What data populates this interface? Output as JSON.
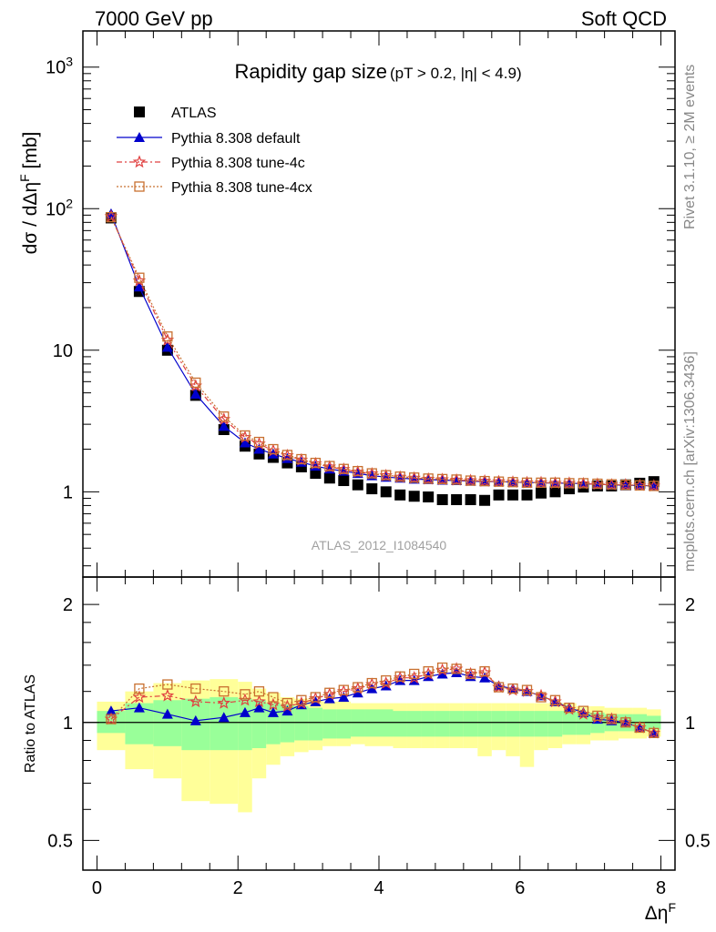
{
  "header": {
    "left": "7000 GeV pp",
    "right": "Soft QCD"
  },
  "side_labels": {
    "rivet": "Rivet 3.1.10, ≥ 2M events",
    "mcplots": "mcplots.cern.ch [arXiv:1306.3436]"
  },
  "colors": {
    "atlas": "#000000",
    "default": "#0000cc",
    "tune4c": "#e04040",
    "tune4cx": "#c87030",
    "band_green": "#99ff99",
    "band_yellow": "#ffff99"
  },
  "chart_data": [
    {
      "type": "scatter",
      "title": "Rapidity gap size",
      "title_suffix": "(pT > 0.2, |η| < 4.9)",
      "watermark": "ATLAS_2012_I1084540",
      "xlabel": "Δη^F",
      "ylabel": "dσ / dΔη^F [mb]",
      "yscale": "log",
      "xlim": [
        -0.2,
        8.2
      ],
      "ylim": [
        0.25,
        1800
      ],
      "x_ticks": [
        "0",
        "2",
        "4",
        "6",
        "8"
      ],
      "y_ticks": [
        "10^3",
        "10^2",
        "10",
        "1"
      ],
      "legend_position": "top-left",
      "x": [
        0.2,
        0.6,
        1.0,
        1.4,
        1.8,
        2.1,
        2.3,
        2.5,
        2.7,
        2.9,
        3.1,
        3.3,
        3.5,
        3.7,
        3.9,
        4.1,
        4.3,
        4.5,
        4.7,
        4.9,
        5.1,
        5.3,
        5.5,
        5.7,
        5.9,
        6.1,
        6.3,
        6.5,
        6.7,
        6.9,
        7.1,
        7.3,
        7.5,
        7.7,
        7.9
      ],
      "series": [
        {
          "name": "ATLAS",
          "marker": "square",
          "values": [
            86,
            26,
            10,
            4.8,
            2.75,
            2.1,
            1.85,
            1.75,
            1.6,
            1.5,
            1.35,
            1.25,
            1.2,
            1.12,
            1.05,
            1.0,
            0.95,
            0.93,
            0.92,
            0.88,
            0.88,
            0.88,
            0.87,
            0.95,
            0.95,
            0.95,
            0.98,
            1.0,
            1.05,
            1.08,
            1.1,
            1.1,
            1.12,
            1.15,
            1.18
          ]
        },
        {
          "name": "Pythia 8.308 default",
          "marker": "triangle",
          "values": [
            92,
            28,
            10.5,
            4.9,
            2.9,
            2.22,
            2.0,
            1.85,
            1.72,
            1.62,
            1.52,
            1.45,
            1.4,
            1.35,
            1.3,
            1.27,
            1.25,
            1.23,
            1.22,
            1.21,
            1.2,
            1.19,
            1.18,
            1.18,
            1.17,
            1.16,
            1.16,
            1.15,
            1.15,
            1.14,
            1.13,
            1.12,
            1.11,
            1.11,
            1.1
          ]
        },
        {
          "name": "Pythia 8.308 tune-4c",
          "marker": "star",
          "values": [
            88,
            31,
            11.8,
            5.6,
            3.25,
            2.42,
            2.18,
            1.95,
            1.8,
            1.68,
            1.58,
            1.5,
            1.44,
            1.38,
            1.34,
            1.3,
            1.27,
            1.25,
            1.23,
            1.22,
            1.21,
            1.2,
            1.19,
            1.18,
            1.17,
            1.16,
            1.16,
            1.15,
            1.15,
            1.14,
            1.13,
            1.12,
            1.12,
            1.11,
            1.1
          ]
        },
        {
          "name": "Pythia 8.308 tune-4cx",
          "marker": "open-square",
          "values": [
            87,
            32.5,
            12.5,
            5.9,
            3.4,
            2.5,
            2.25,
            2.0,
            1.82,
            1.7,
            1.6,
            1.52,
            1.45,
            1.4,
            1.35,
            1.31,
            1.28,
            1.26,
            1.24,
            1.23,
            1.22,
            1.2,
            1.19,
            1.18,
            1.17,
            1.16,
            1.16,
            1.16,
            1.15,
            1.15,
            1.14,
            1.13,
            1.12,
            1.11,
            1.1
          ]
        }
      ]
    },
    {
      "type": "scatter",
      "xlabel": "Δη^F",
      "ylabel": "Ratio to ATLAS",
      "yscale": "log",
      "xlim": [
        -0.2,
        8.2
      ],
      "ylim": [
        0.42,
        2.35
      ],
      "y_ticks": [
        "2",
        "1",
        "0.5"
      ],
      "x": [
        0.2,
        0.6,
        1.0,
        1.4,
        1.8,
        2.1,
        2.3,
        2.5,
        2.7,
        2.9,
        3.1,
        3.3,
        3.5,
        3.7,
        3.9,
        4.1,
        4.3,
        4.5,
        4.7,
        4.9,
        5.1,
        5.3,
        5.5,
        5.7,
        5.9,
        6.1,
        6.3,
        6.5,
        6.7,
        6.9,
        7.1,
        7.3,
        7.5,
        7.7,
        7.9
      ],
      "band_edges": [
        0.0,
        0.4,
        0.8,
        1.2,
        1.6,
        2.0,
        2.2,
        2.4,
        2.6,
        2.8,
        3.0,
        3.2,
        3.4,
        3.6,
        3.8,
        4.0,
        4.2,
        4.4,
        4.6,
        4.8,
        5.0,
        5.2,
        5.4,
        5.6,
        5.8,
        6.0,
        6.2,
        6.4,
        6.6,
        6.8,
        7.0,
        7.2,
        7.4,
        7.6,
        7.8,
        8.0
      ],
      "band_inner_lo": [
        0.94,
        0.88,
        0.87,
        0.85,
        0.85,
        0.85,
        0.86,
        0.88,
        0.89,
        0.9,
        0.9,
        0.91,
        0.91,
        0.92,
        0.92,
        0.92,
        0.92,
        0.92,
        0.92,
        0.92,
        0.92,
        0.92,
        0.92,
        0.92,
        0.92,
        0.92,
        0.92,
        0.92,
        0.93,
        0.93,
        0.94,
        0.95,
        0.95,
        0.95,
        0.96
      ],
      "band_inner_hi": [
        1.07,
        1.12,
        1.14,
        1.15,
        1.16,
        1.15,
        1.14,
        1.12,
        1.11,
        1.1,
        1.09,
        1.08,
        1.08,
        1.08,
        1.08,
        1.08,
        1.07,
        1.07,
        1.07,
        1.07,
        1.07,
        1.07,
        1.07,
        1.07,
        1.07,
        1.07,
        1.07,
        1.07,
        1.07,
        1.06,
        1.06,
        1.05,
        1.05,
        1.05,
        1.04
      ],
      "band_outer_lo": [
        0.85,
        0.76,
        0.72,
        0.63,
        0.62,
        0.59,
        0.72,
        0.78,
        0.82,
        0.84,
        0.85,
        0.87,
        0.87,
        0.88,
        0.87,
        0.87,
        0.86,
        0.86,
        0.86,
        0.86,
        0.86,
        0.86,
        0.82,
        0.85,
        0.82,
        0.77,
        0.85,
        0.86,
        0.88,
        0.88,
        0.9,
        0.9,
        0.91,
        0.91,
        0.92
      ],
      "band_outer_hi": [
        1.13,
        1.2,
        1.26,
        1.28,
        1.29,
        1.27,
        1.22,
        1.19,
        1.16,
        1.15,
        1.14,
        1.13,
        1.13,
        1.12,
        1.12,
        1.12,
        1.12,
        1.12,
        1.12,
        1.12,
        1.12,
        1.12,
        1.12,
        1.12,
        1.12,
        1.12,
        1.12,
        1.12,
        1.12,
        1.1,
        1.1,
        1.09,
        1.09,
        1.09,
        1.08
      ],
      "series": [
        {
          "name": "Pythia 8.308 default",
          "values": [
            1.07,
            1.09,
            1.05,
            1.01,
            1.03,
            1.06,
            1.09,
            1.06,
            1.07,
            1.11,
            1.13,
            1.15,
            1.16,
            1.19,
            1.22,
            1.24,
            1.28,
            1.28,
            1.31,
            1.33,
            1.34,
            1.31,
            1.3,
            1.24,
            1.22,
            1.2,
            1.17,
            1.13,
            1.09,
            1.06,
            1.02,
            1.01,
            1.0,
            0.97,
            0.94
          ]
        },
        {
          "name": "Pythia 8.308 tune-4c",
          "values": [
            1.02,
            1.16,
            1.17,
            1.13,
            1.12,
            1.14,
            1.13,
            1.11,
            1.1,
            1.12,
            1.15,
            1.18,
            1.2,
            1.22,
            1.25,
            1.26,
            1.3,
            1.3,
            1.33,
            1.36,
            1.37,
            1.33,
            1.34,
            1.23,
            1.21,
            1.2,
            1.17,
            1.13,
            1.08,
            1.05,
            1.03,
            1.02,
            1.0,
            0.97,
            0.94
          ]
        },
        {
          "name": "Pythia 8.308 tune-4cx",
          "values": [
            1.02,
            1.22,
            1.25,
            1.22,
            1.2,
            1.18,
            1.2,
            1.16,
            1.12,
            1.14,
            1.16,
            1.19,
            1.21,
            1.23,
            1.26,
            1.28,
            1.31,
            1.33,
            1.35,
            1.38,
            1.37,
            1.33,
            1.35,
            1.23,
            1.22,
            1.21,
            1.16,
            1.14,
            1.09,
            1.07,
            1.04,
            1.02,
            1.0,
            0.97,
            0.94
          ]
        }
      ]
    }
  ]
}
